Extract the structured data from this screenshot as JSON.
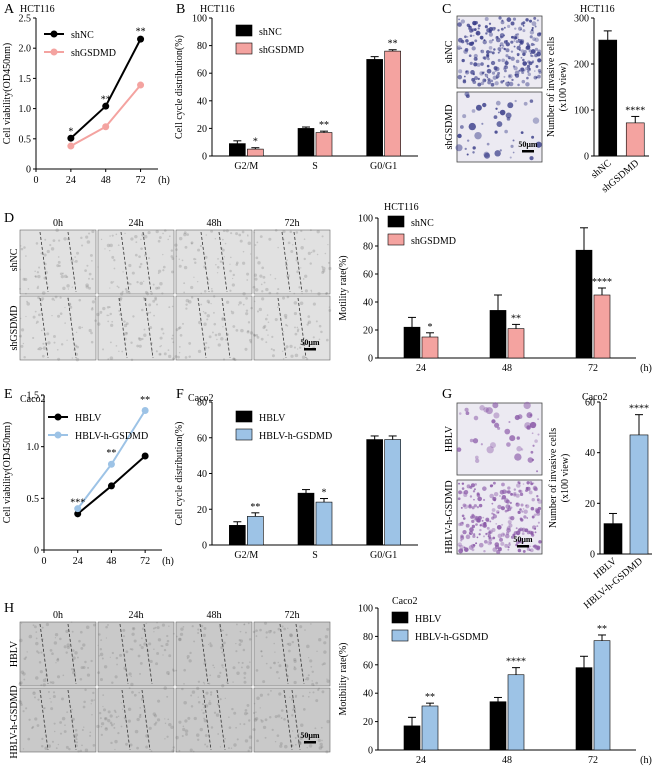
{
  "figure": {
    "panels": [
      "A",
      "B",
      "C",
      "D",
      "E",
      "F",
      "G",
      "H"
    ],
    "scale_bar": "50μm",
    "time_label_suffix": "(h)"
  },
  "colors": {
    "black": "#000000",
    "pink": "#f4a3a0",
    "blue": "#9dc3e6",
    "line_blue": "#9dc3e6",
    "line_pink": "#f4a3a0"
  },
  "microscopy": {
    "C": {
      "rows": [
        "shNC",
        "shGSDMD"
      ]
    },
    "D": {
      "timepoints": [
        "0h",
        "24h",
        "48h",
        "72h"
      ],
      "rows": [
        "shNC",
        "shGSDMD"
      ]
    },
    "G": {
      "rows": [
        "HBLV",
        "HBLV-h-GSDMD"
      ]
    },
    "H": {
      "timepoints": [
        "0h",
        "24h",
        "48h",
        "72h"
      ],
      "rows": [
        "HBLV",
        "HBLV-h-GSDMD"
      ]
    }
  },
  "chart_data": [
    {
      "panel": "A",
      "type": "line",
      "title": "HCT116",
      "ylabel": "Cell viability(OD450nm)",
      "xlabel": "(h)",
      "x": [
        24,
        48,
        72
      ],
      "xticks": [
        "0",
        "24",
        "48",
        "72"
      ],
      "xlim": [
        0,
        84
      ],
      "ylim": [
        0,
        2.5
      ],
      "yticks": [
        "0",
        "0.5",
        "1.0",
        "1.5",
        "2.0",
        "2.5"
      ],
      "series": [
        {
          "name": "shNC",
          "color": "black",
          "values": [
            0.51,
            1.04,
            2.15
          ]
        },
        {
          "name": "shGSDMD",
          "color": "pink",
          "values": [
            0.38,
            0.7,
            1.39
          ]
        }
      ],
      "annotations": [
        {
          "x": 24,
          "y": 0.62,
          "text": "*"
        },
        {
          "x": 48,
          "y": 1.15,
          "text": "**"
        },
        {
          "x": 72,
          "y": 2.28,
          "text": "**"
        }
      ],
      "legend": "top-left"
    },
    {
      "panel": "B",
      "type": "bar",
      "title": "HCT116",
      "ylabel": "Cell cycle distribution(%)",
      "categories": [
        "G2/M",
        "S",
        "G0/G1"
      ],
      "ylim": [
        0,
        100
      ],
      "yticks": [
        "0",
        "20",
        "40",
        "60",
        "80",
        "100"
      ],
      "series": [
        {
          "name": "shNC",
          "color": "black",
          "values": [
            9,
            20,
            70
          ],
          "errors": [
            2,
            1,
            2
          ]
        },
        {
          "name": "shGSDMD",
          "color": "pink",
          "values": [
            5,
            17,
            76
          ],
          "errors": [
            1,
            1,
            1
          ]
        }
      ],
      "significance": [
        "*",
        "**",
        "**"
      ],
      "legend": "top-left"
    },
    {
      "panel": "C",
      "type": "bar",
      "title": "HCT116",
      "ylabel": "Number of invasive cells",
      "ylabel2": "(x100 view)",
      "categories": [
        "shNC",
        "shGSDMD"
      ],
      "ylim": [
        0,
        300
      ],
      "yticks": [
        "0",
        "100",
        "200",
        "300"
      ],
      "values": [
        252,
        72
      ],
      "errors": [
        20,
        14
      ],
      "colors": [
        "black",
        "pink"
      ],
      "significance": [
        "",
        "****"
      ]
    },
    {
      "panel": "D",
      "type": "bar",
      "title": "HCT116",
      "ylabel": "Motility rate(%)",
      "xlabel": "(h)",
      "categories": [
        "24",
        "48",
        "72"
      ],
      "ylim": [
        0,
        100
      ],
      "yticks": [
        "0",
        "20",
        "40",
        "60",
        "80",
        "100"
      ],
      "series": [
        {
          "name": "shNC",
          "color": "black",
          "values": [
            22,
            34,
            77
          ],
          "errors": [
            7,
            11,
            16
          ]
        },
        {
          "name": "shGSDMD",
          "color": "pink",
          "values": [
            15,
            21,
            45
          ],
          "errors": [
            3,
            3,
            5
          ]
        }
      ],
      "significance": [
        "*",
        "**",
        "****"
      ],
      "legend": "top-left"
    },
    {
      "panel": "E",
      "type": "line",
      "title": "Caco2",
      "ylabel": "Cell viability(OD450nm)",
      "xlabel": "(h)",
      "x": [
        24,
        48,
        72
      ],
      "xticks": [
        "0",
        "24",
        "48",
        "72"
      ],
      "xlim": [
        0,
        84
      ],
      "ylim": [
        0,
        1.5
      ],
      "yticks": [
        "0",
        "0.5",
        "1.0",
        "1.5"
      ],
      "series": [
        {
          "name": "HBLV",
          "color": "black",
          "values": [
            0.35,
            0.62,
            0.91
          ]
        },
        {
          "name": "HBLV-h-GSDMD",
          "color": "blue",
          "values": [
            0.4,
            0.83,
            1.35
          ]
        }
      ],
      "annotations": [
        {
          "x": 24,
          "y": 0.46,
          "text": "***"
        },
        {
          "x": 48,
          "y": 0.94,
          "text": "**"
        },
        {
          "x": 72,
          "y": 1.45,
          "text": "**"
        }
      ],
      "legend": "top-left"
    },
    {
      "panel": "F",
      "type": "bar",
      "title": "Caco2",
      "ylabel": "Cell cycle distribution(%)",
      "categories": [
        "G2/M",
        "S",
        "G0/G1"
      ],
      "ylim": [
        0,
        80
      ],
      "yticks": [
        "0",
        "20",
        "40",
        "60",
        "80"
      ],
      "series": [
        {
          "name": "HBLV",
          "color": "black",
          "values": [
            11,
            29,
            59
          ],
          "errors": [
            2,
            2,
            2
          ]
        },
        {
          "name": "HBLV-h-GSDMD",
          "color": "blue",
          "values": [
            16,
            24,
            59
          ],
          "errors": [
            2,
            2,
            2
          ]
        }
      ],
      "significance": [
        "**",
        "*",
        ""
      ],
      "legend": "top-left"
    },
    {
      "panel": "G",
      "type": "bar",
      "title": "Caco2",
      "ylabel": "Number of invasive cells",
      "ylabel2": "(x100 view)",
      "categories": [
        "HBLV",
        "HBLV-h-GSDMD"
      ],
      "ylim": [
        0,
        60
      ],
      "yticks": [
        "0",
        "20",
        "40",
        "60"
      ],
      "values": [
        12,
        47
      ],
      "errors": [
        4,
        8
      ],
      "colors": [
        "black",
        "blue"
      ],
      "significance": [
        "",
        "****"
      ]
    },
    {
      "panel": "H",
      "type": "bar",
      "title": "Caco2",
      "ylabel": "Motibility rate(%)",
      "xlabel": "(h)",
      "categories": [
        "24",
        "48",
        "72"
      ],
      "ylim": [
        0,
        100
      ],
      "yticks": [
        "0",
        "20",
        "40",
        "60",
        "80",
        "100"
      ],
      "series": [
        {
          "name": "HBLV",
          "color": "black",
          "values": [
            17,
            34,
            58
          ],
          "errors": [
            6,
            3,
            8
          ]
        },
        {
          "name": "HBLV-h-GSDMD",
          "color": "blue",
          "values": [
            31,
            53,
            77
          ],
          "errors": [
            2,
            5,
            4
          ]
        }
      ],
      "significance": [
        "**",
        "****",
        "**"
      ],
      "legend": "top-left"
    }
  ]
}
